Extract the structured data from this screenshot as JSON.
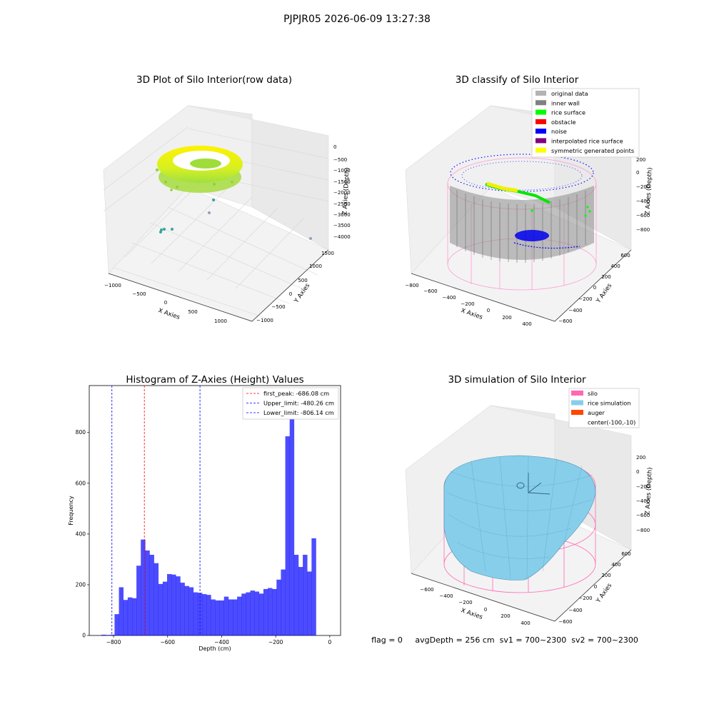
{
  "page": {
    "suptitle": "PJPJR05 2026-06-09 13:27:38",
    "footer": "flag = 0     avgDepth = 256 cm  sv1 = 700~2300  sv2 = 700~2300"
  },
  "panels": {
    "raw": {
      "title": "3D Plot of Silo Interior(row data)",
      "xlabel": "X Axies",
      "ylabel": "Y Axies",
      "zlabel": "Z Axies (Depth)",
      "xticks": [
        "−1000",
        "−500",
        "0",
        "500",
        "1000"
      ],
      "yticks": [
        "−1000",
        "−500",
        "0",
        "500",
        "1000",
        "1500"
      ],
      "zticks": [
        "0",
        "−500",
        "−1000",
        "−1500",
        "−2000",
        "−2500",
        "−3000",
        "−3500",
        "−4000"
      ]
    },
    "classify": {
      "title": "3D classify of Silo Interior",
      "xlabel": "X Axies",
      "ylabel": "Y Axies",
      "zlabel": "Z Axies (Depth)",
      "xticks": [
        "−800",
        "−600",
        "−400",
        "−200",
        "0",
        "200",
        "400"
      ],
      "yticks": [
        "−600",
        "−400",
        "−200",
        "0",
        "200",
        "400",
        "600"
      ],
      "zticks": [
        "200",
        "0",
        "−200",
        "−400",
        "−600",
        "−800"
      ],
      "legend": [
        {
          "label": "original data",
          "color": "#b3b3b3"
        },
        {
          "label": "inner wall",
          "color": "#808080"
        },
        {
          "label": "rice surface",
          "color": "#00ff00"
        },
        {
          "label": "obstacle",
          "color": "#ff0000"
        },
        {
          "label": "noise",
          "color": "#0000ff"
        },
        {
          "label": "interpolated rice surface",
          "color": "#800080"
        },
        {
          "label": "symmetric generated points",
          "color": "#ffff00"
        }
      ]
    },
    "simulation": {
      "title": "3D simulation of Silo Interior",
      "xlabel": "X Axies",
      "ylabel": "Y Axies",
      "zlabel": "Z Axies (Depth)",
      "xticks": [
        "−600",
        "−400",
        "−200",
        "0",
        "200",
        "400"
      ],
      "yticks": [
        "−600",
        "−400",
        "−200",
        "0",
        "200",
        "400",
        "600"
      ],
      "zticks": [
        "200",
        "0",
        "−200",
        "−400",
        "−600",
        "−800"
      ],
      "legend": [
        {
          "label": "silo",
          "color": "#ff69b4"
        },
        {
          "label": "rice simulation",
          "color": "#87ceeb"
        },
        {
          "label": "auger",
          "color": "#ff4500"
        },
        {
          "label": "center(-100,-10)",
          "color": ""
        }
      ]
    }
  },
  "chart_data": {
    "type": "bar",
    "title": "Histogram of Z-Axies (Height) Values",
    "xlabel": "Depth (cm)",
    "ylabel": "Frequency",
    "xlim": [
      -890,
      40
    ],
    "ylim": [
      0,
      985
    ],
    "xticks": [
      -800,
      -600,
      -400,
      -200,
      0
    ],
    "xtick_labels": [
      "−800",
      "−600",
      "−400",
      "−200",
      "0"
    ],
    "yticks": [
      0,
      200,
      400,
      600,
      800
    ],
    "bar_color": "#0000ff",
    "bins": {
      "start": -845,
      "width": 16.2,
      "values": [
        3,
        2,
        3,
        84,
        190,
        140,
        150,
        147,
        275,
        378,
        335,
        318,
        285,
        203,
        212,
        242,
        240,
        233,
        208,
        195,
        190,
        170,
        168,
        163,
        160,
        142,
        138,
        138,
        153,
        142,
        142,
        153,
        165,
        170,
        177,
        173,
        165,
        183,
        187,
        183,
        220,
        260,
        785,
        930,
        318,
        270,
        318,
        252,
        383
      ]
    },
    "lines": [
      {
        "label": "first_peak: -686.08 cm",
        "x": -686.08,
        "color": "#ff0000"
      },
      {
        "label": "Upper_limit: -480.26 cm",
        "x": -480.26,
        "color": "#0000ff"
      },
      {
        "label": "Lower_limit: -806.14 cm",
        "x": -806.14,
        "color": "#0000ff"
      }
    ]
  }
}
